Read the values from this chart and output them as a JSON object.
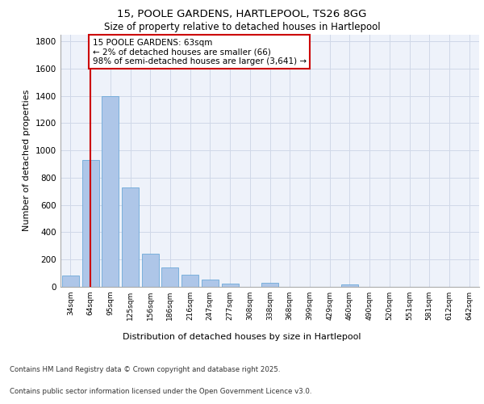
{
  "title_line1": "15, POOLE GARDENS, HARTLEPOOL, TS26 8GG",
  "title_line2": "Size of property relative to detached houses in Hartlepool",
  "xlabel": "Distribution of detached houses by size in Hartlepool",
  "ylabel": "Number of detached properties",
  "categories": [
    "34sqm",
    "64sqm",
    "95sqm",
    "125sqm",
    "156sqm",
    "186sqm",
    "216sqm",
    "247sqm",
    "277sqm",
    "308sqm",
    "338sqm",
    "368sqm",
    "399sqm",
    "429sqm",
    "460sqm",
    "490sqm",
    "520sqm",
    "551sqm",
    "581sqm",
    "612sqm",
    "642sqm"
  ],
  "values": [
    85,
    930,
    1400,
    730,
    245,
    145,
    88,
    55,
    25,
    0,
    28,
    0,
    0,
    0,
    18,
    0,
    0,
    0,
    0,
    0,
    0
  ],
  "bar_color": "#aec6e8",
  "bar_edge_color": "#5a9fd4",
  "grid_color": "#d0d8e8",
  "bg_color": "#eef2fa",
  "annotation_text": "15 POOLE GARDENS: 63sqm\n← 2% of detached houses are smaller (66)\n98% of semi-detached houses are larger (3,641) →",
  "vline_x": 1,
  "vline_color": "#cc0000",
  "box_color": "#cc0000",
  "ylim": [
    0,
    1850
  ],
  "yticks": [
    0,
    200,
    400,
    600,
    800,
    1000,
    1200,
    1400,
    1600,
    1800
  ],
  "footer_line1": "Contains HM Land Registry data © Crown copyright and database right 2025.",
  "footer_line2": "Contains public sector information licensed under the Open Government Licence v3.0."
}
